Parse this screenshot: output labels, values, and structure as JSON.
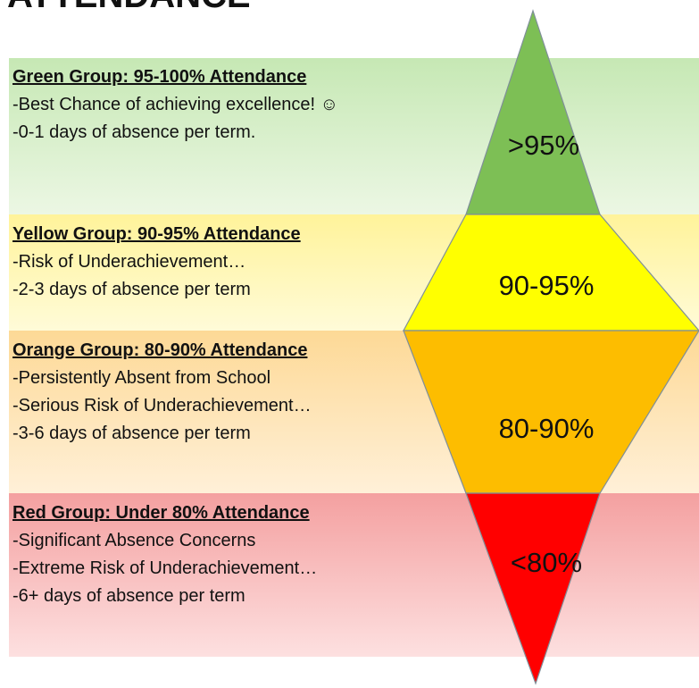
{
  "title": "ATTENDANCE",
  "groups": [
    {
      "heading": "Green Group: 95-100% Attendance",
      "lines": [
        "-Best Chance of achieving excellence! ☺",
        "-0-1 days of absence per term."
      ],
      "label": ">95%"
    },
    {
      "heading": "Yellow Group: 90-95% Attendance",
      "lines": [
        "-Risk of Underachievement…",
        "-2-3 days of absence per term"
      ],
      "label": "90-95%"
    },
    {
      "heading": "Orange Group: 80-90% Attendance",
      "lines": [
        "-Persistently Absent from School",
        "-Serious Risk of Underachievement…",
        "-3-6 days of absence per term"
      ],
      "label": "80-90%"
    },
    {
      "heading": "Red Group: Under 80% Attendance",
      "lines": [
        "-Significant Absence Concerns",
        "-Extreme Risk of Underachievement…",
        "-6+ days of absence per term"
      ],
      "label": "<80%"
    }
  ]
}
